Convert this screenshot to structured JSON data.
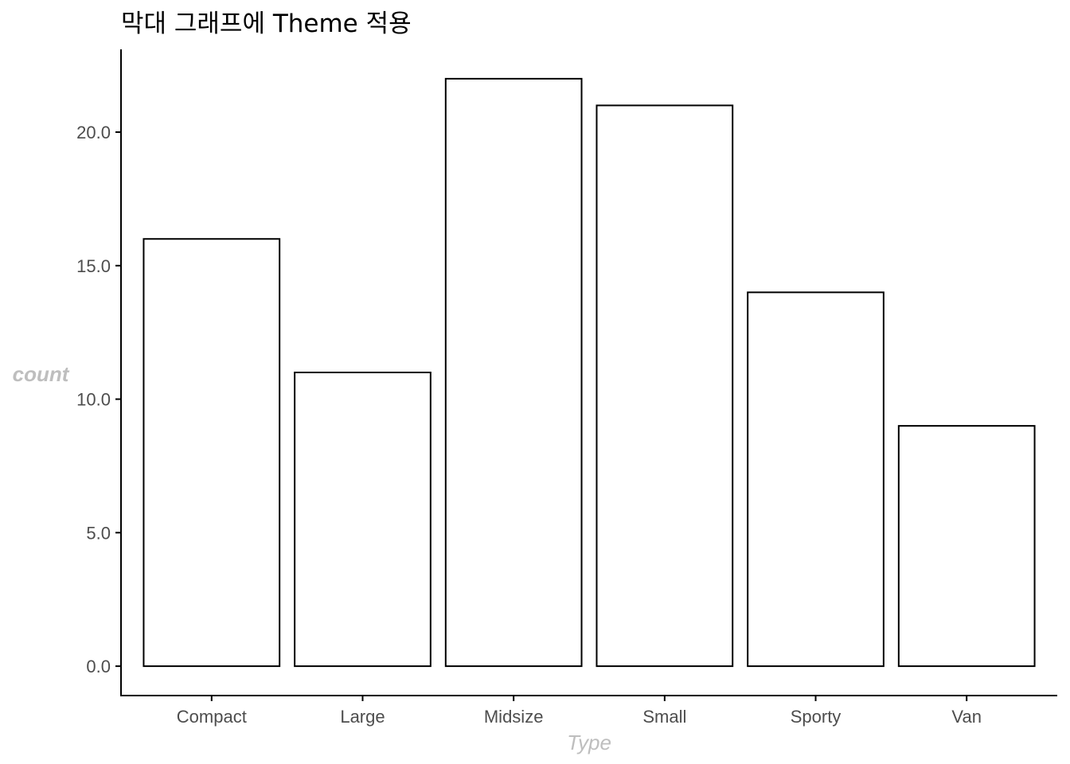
{
  "chart_data": {
    "type": "bar",
    "title": "막대 그래프에 Theme 적용",
    "xlabel": "Type",
    "ylabel": "count",
    "categories": [
      "Compact",
      "Large",
      "Midsize",
      "Small",
      "Sporty",
      "Van"
    ],
    "values": [
      16,
      11,
      22,
      21,
      14,
      9
    ],
    "ylim": [
      -1.1,
      23.1
    ],
    "yticks": [
      0,
      5,
      10,
      15,
      20
    ],
    "ytick_labels": [
      "0.0",
      "5.0",
      "10.0",
      "15.0",
      "20.0"
    ],
    "grid": false,
    "legend": "none",
    "bar_fill": "#ffffff",
    "bar_outline": "#000000",
    "axis_title_color": "#bebebe"
  }
}
